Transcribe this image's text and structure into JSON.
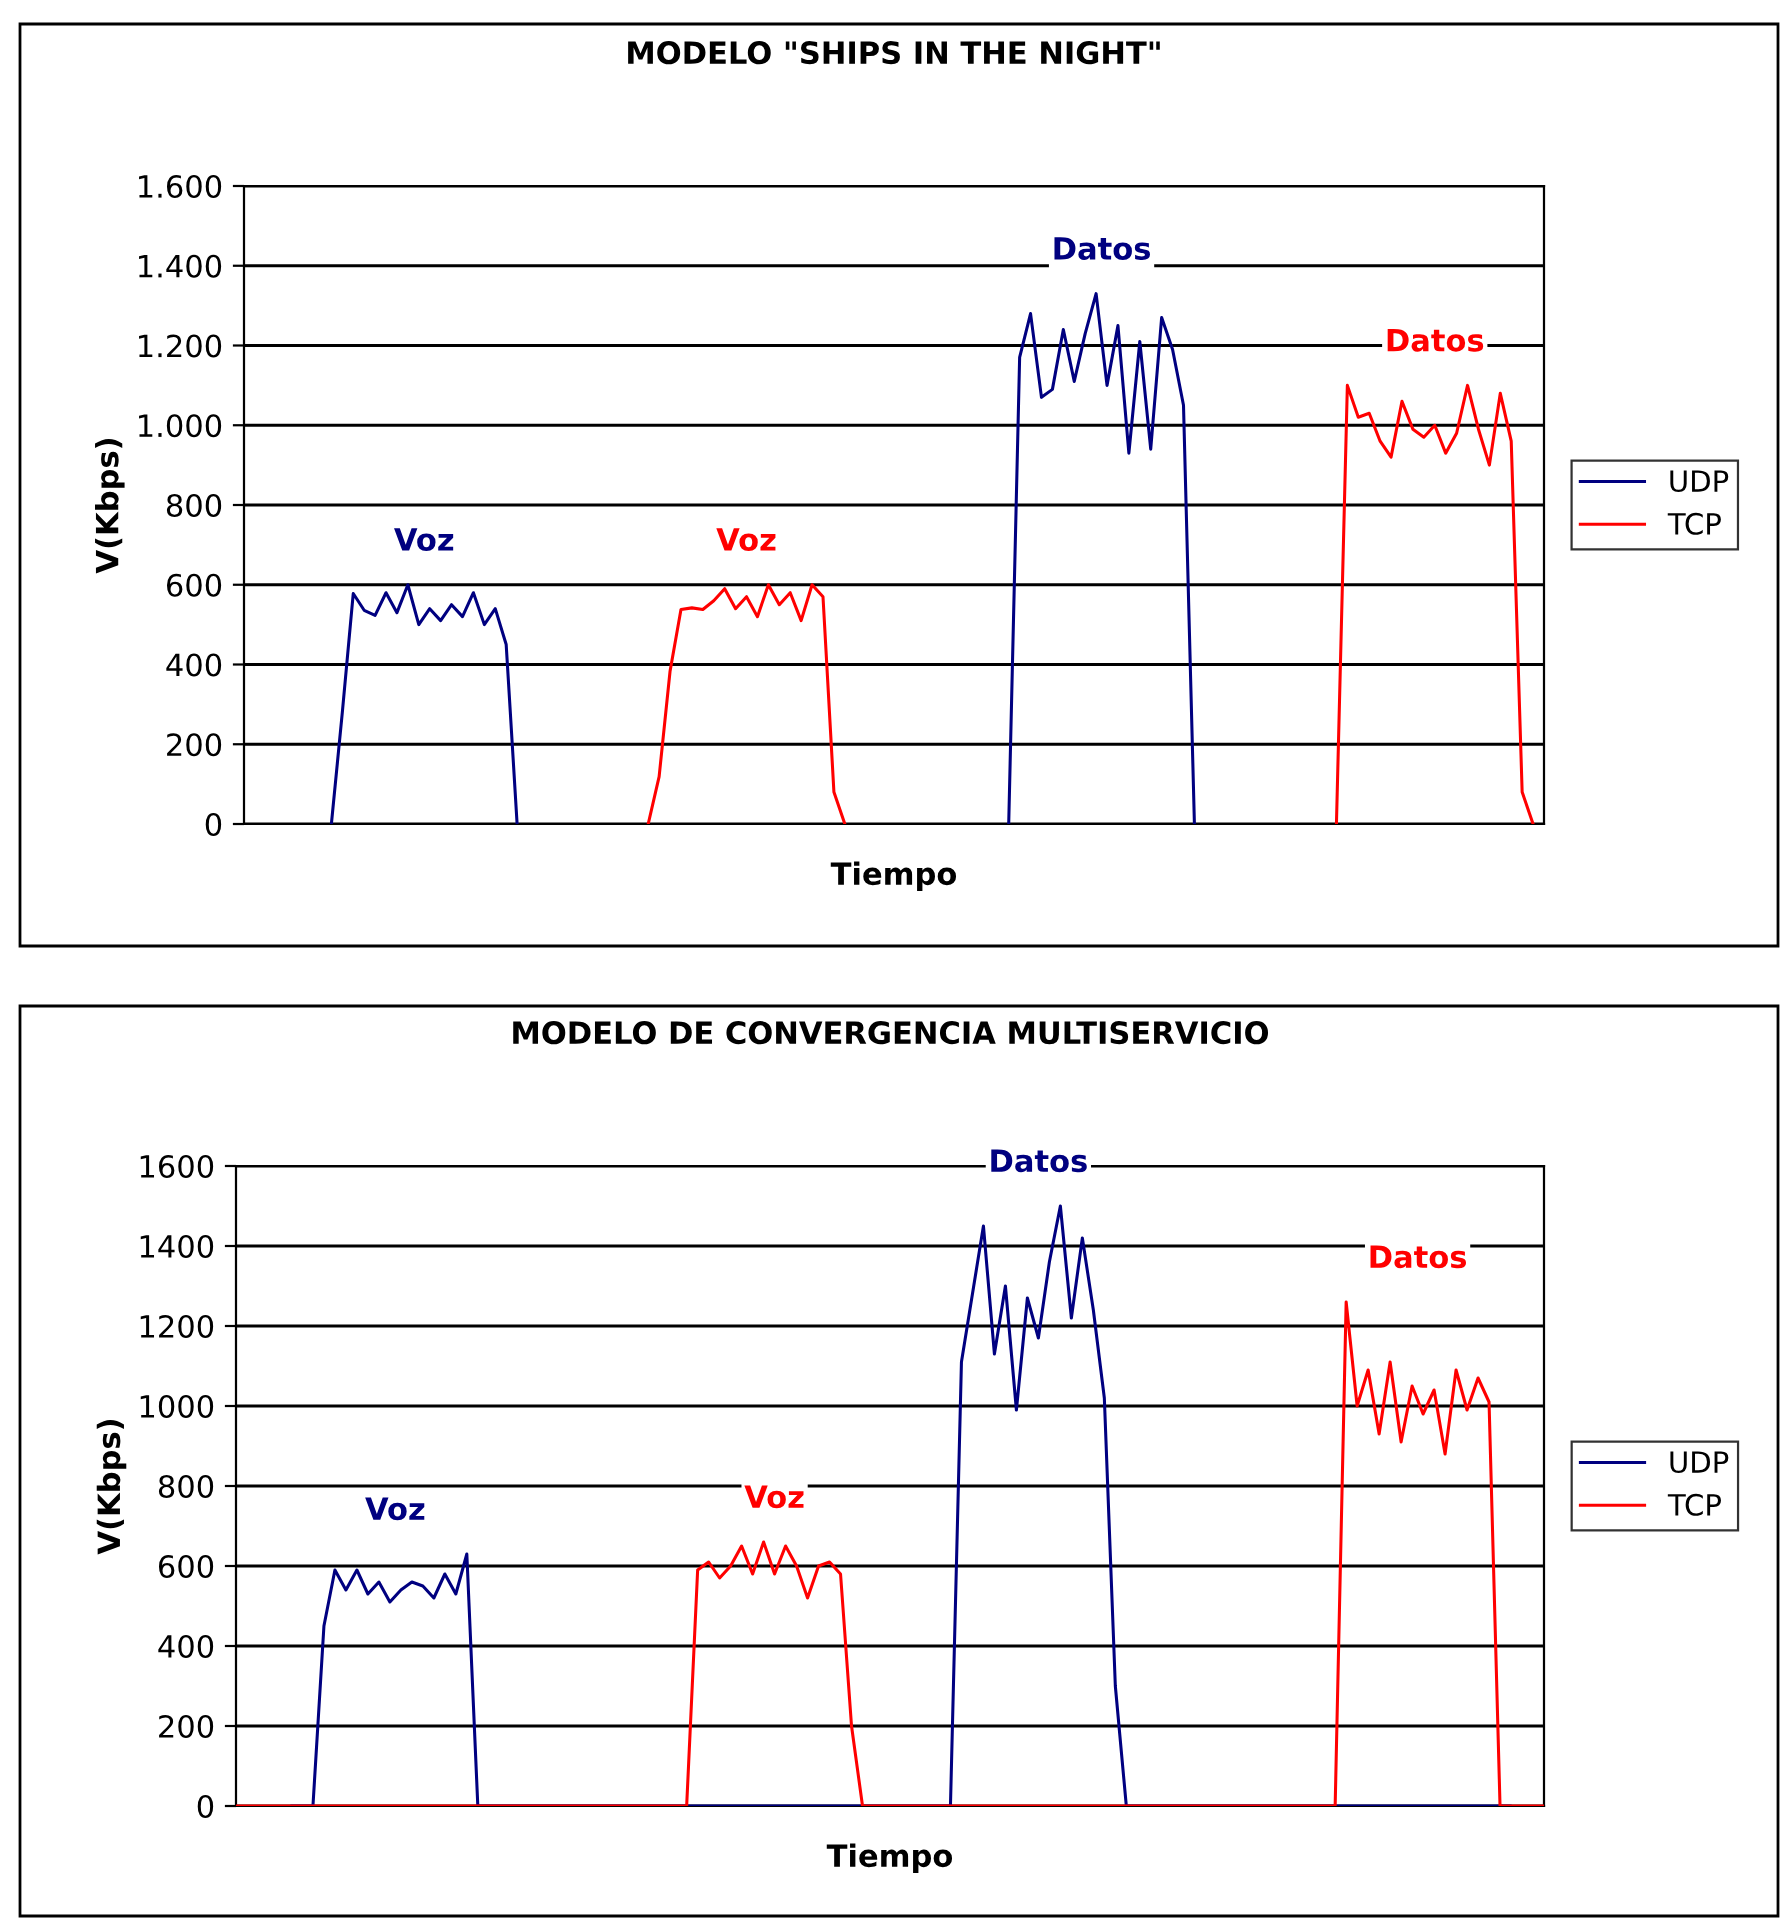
{
  "chart_data": [
    {
      "type": "line",
      "title": "MODELO \"SHIPS IN THE NIGHT\"",
      "xlabel": "Tiempo",
      "ylabel": "V(Kbps)",
      "categories": [
        null,
        null,
        null,
        null,
        null,
        null,
        null,
        null,
        null,
        null,
        null,
        null,
        null,
        null,
        null,
        null,
        null,
        null,
        null,
        null,
        null,
        null,
        null,
        null,
        null,
        null,
        null,
        null,
        null,
        null,
        null,
        null,
        null,
        null,
        null,
        null,
        null,
        null,
        null,
        null,
        null,
        null,
        null,
        null,
        null,
        null,
        null,
        null,
        null,
        null,
        null,
        null,
        null,
        null,
        null,
        null,
        null,
        null,
        null,
        null,
        null,
        null,
        null,
        null,
        null,
        null,
        null,
        null,
        null,
        null,
        null,
        null,
        null,
        null,
        null,
        null,
        null,
        null,
        null,
        null,
        null,
        null,
        null,
        null,
        null,
        null,
        null,
        null,
        null,
        null,
        null,
        null,
        null,
        null,
        null,
        null,
        null,
        null,
        null,
        null,
        null,
        null,
        null,
        null,
        null,
        null,
        null,
        null,
        null,
        null,
        null,
        null,
        null,
        null,
        null,
        null,
        null,
        null,
        null,
        null
      ],
      "series": [
        {
          "name": "UDP",
          "color": "#000080",
          "values": [
            null,
            null,
            null,
            null,
            null,
            null,
            null,
            null,
            0,
            280,
            578,
            536,
            523,
            580,
            530,
            600,
            500,
            540,
            510,
            550,
            520,
            580,
            500,
            540,
            450,
            0,
            null,
            null,
            null,
            null,
            null,
            null,
            null,
            null,
            null,
            null,
            null,
            null,
            null,
            null,
            null,
            null,
            null,
            null,
            null,
            null,
            null,
            null,
            null,
            null,
            null,
            null,
            null,
            null,
            null,
            null,
            null,
            null,
            null,
            null,
            null,
            null,
            null,
            null,
            null,
            null,
            null,
            null,
            null,
            null,
            0,
            1170,
            1280,
            1070,
            1090,
            1240,
            1110,
            1230,
            1330,
            1100,
            1250,
            930,
            1210,
            940,
            1270,
            1190,
            1050,
            0,
            null,
            null,
            null,
            null,
            null,
            null,
            null,
            null,
            null,
            null,
            null,
            null,
            null,
            null,
            null,
            null,
            null,
            null,
            null,
            null,
            null,
            null,
            null,
            null,
            null,
            null,
            null,
            null,
            null,
            null,
            null,
            null
          ]
        },
        {
          "name": "TCP",
          "color": "#ff0000",
          "values": [
            null,
            null,
            null,
            null,
            null,
            null,
            null,
            null,
            null,
            null,
            null,
            null,
            null,
            null,
            null,
            null,
            null,
            null,
            null,
            null,
            null,
            null,
            null,
            null,
            null,
            null,
            null,
            null,
            null,
            null,
            null,
            null,
            null,
            null,
            null,
            null,
            null,
            0,
            119,
            383,
            538,
            542,
            538,
            560,
            590,
            540,
            570,
            520,
            600,
            550,
            580,
            510,
            600,
            570,
            80,
            0,
            null,
            null,
            null,
            null,
            null,
            null,
            null,
            null,
            null,
            null,
            null,
            null,
            null,
            null,
            null,
            null,
            null,
            null,
            null,
            null,
            null,
            null,
            null,
            null,
            null,
            null,
            null,
            null,
            null,
            null,
            null,
            null,
            null,
            null,
            null,
            null,
            null,
            null,
            null,
            null,
            null,
            null,
            null,
            null,
            0,
            1100,
            1020,
            1030,
            960,
            920,
            1060,
            990,
            970,
            1000,
            930,
            980,
            1100,
            990,
            900,
            1080,
            960,
            80,
            0,
            null
          ]
        }
      ],
      "ylim": [
        0,
        1600
      ],
      "yticks": [
        {
          "value": 0,
          "label": "0"
        },
        {
          "value": 200,
          "label": "200"
        },
        {
          "value": 400,
          "label": "400"
        },
        {
          "value": 600,
          "label": "600"
        },
        {
          "value": 800,
          "label": "800"
        },
        {
          "value": 1000,
          "label": "1.000"
        },
        {
          "value": 1200,
          "label": "1.200"
        },
        {
          "value": 1400,
          "label": "1.400"
        },
        {
          "value": 1600,
          "label": "1.600"
        }
      ],
      "grid": "y",
      "legend": "right",
      "marker": "none",
      "line_style": "solid",
      "annotations": [
        "Voz",
        "Voz",
        "Datos",
        "Datos"
      ]
    },
    {
      "type": "line",
      "title": "MODELO DE CONVERGENCIA MULTISERVICIO",
      "xlabel": "Tiempo",
      "ylabel": "V(Kbps)",
      "categories": [
        null,
        null,
        null,
        null,
        null,
        null,
        null,
        null,
        null,
        null,
        null,
        null,
        null,
        null,
        null,
        null,
        null,
        null,
        null,
        null,
        null,
        null,
        null,
        null,
        null,
        null,
        null,
        null,
        null,
        null,
        null,
        null,
        null,
        null,
        null,
        null,
        null,
        null,
        null,
        null,
        null,
        null,
        null,
        null,
        null,
        null,
        null,
        null,
        null,
        null,
        null,
        null,
        null,
        null,
        null,
        null,
        null,
        null,
        null,
        null,
        null,
        null,
        null,
        null,
        null,
        null,
        null,
        null,
        null,
        null,
        null,
        null,
        null,
        null,
        null,
        null,
        null,
        null,
        null,
        null,
        null,
        null,
        null,
        null,
        null,
        null,
        null,
        null,
        null,
        null,
        null,
        null,
        null,
        null,
        null,
        null,
        null,
        null,
        null,
        null,
        null,
        null,
        null,
        null,
        null,
        null,
        null,
        null,
        null,
        null,
        null,
        null,
        null,
        null,
        null,
        null,
        null,
        null,
        null,
        null
      ],
      "series": [
        {
          "name": "UDP",
          "color": "#000080",
          "values": [
            null,
            null,
            null,
            null,
            null,
            0,
            0,
            0,
            450,
            590,
            540,
            590,
            530,
            560,
            510,
            540,
            560,
            550,
            520,
            580,
            530,
            630,
            0,
            0,
            0,
            0,
            0,
            0,
            0,
            0,
            0,
            0,
            0,
            0,
            0,
            0,
            0,
            0,
            0,
            0,
            0,
            0,
            0,
            0,
            0,
            0,
            0,
            0,
            0,
            0,
            0,
            0,
            0,
            0,
            0,
            0,
            0,
            0,
            0,
            0,
            0,
            0,
            0,
            0,
            0,
            0,
            1110,
            1280,
            1450,
            1130,
            1300,
            990,
            1270,
            1170,
            1360,
            1500,
            1220,
            1420,
            1240,
            1020,
            300,
            0,
            0,
            0,
            0,
            0,
            0,
            0,
            0,
            0,
            0,
            0,
            0,
            0,
            0,
            0,
            0,
            0,
            0,
            0,
            0,
            0,
            0,
            0,
            0,
            0,
            0,
            0,
            0,
            0,
            0,
            0,
            0,
            0,
            0,
            0,
            0,
            null,
            null,
            null
          ]
        },
        {
          "name": "TCP",
          "color": "#ff0000",
          "values": [
            0,
            0,
            0,
            0,
            0,
            0,
            0,
            0,
            0,
            0,
            0,
            0,
            0,
            0,
            0,
            0,
            0,
            0,
            0,
            0,
            0,
            0,
            0,
            0,
            0,
            0,
            0,
            0,
            0,
            0,
            0,
            0,
            0,
            0,
            0,
            0,
            0,
            0,
            0,
            0,
            0,
            0,
            590,
            610,
            570,
            600,
            650,
            580,
            660,
            580,
            650,
            600,
            520,
            600,
            610,
            580,
            200,
            0,
            0,
            0,
            0,
            0,
            0,
            0,
            0,
            0,
            0,
            0,
            0,
            0,
            0,
            0,
            0,
            0,
            0,
            0,
            0,
            0,
            0,
            0,
            0,
            0,
            0,
            0,
            0,
            0,
            0,
            0,
            0,
            0,
            0,
            0,
            0,
            0,
            0,
            0,
            0,
            0,
            0,
            0,
            0,
            1260,
            1000,
            1090,
            930,
            1110,
            910,
            1050,
            980,
            1040,
            880,
            1090,
            990,
            1070,
            1010,
            0,
            0,
            0,
            0,
            0
          ]
        }
      ],
      "ylim": [
        0,
        1600
      ],
      "yticks": [
        0,
        200,
        400,
        600,
        800,
        1000,
        1200,
        1400,
        1600
      ],
      "grid": "y",
      "legend": "right",
      "marker": "none",
      "line_style": "solid",
      "annotations": [
        "Voz",
        "Voz",
        "Datos",
        "Datos"
      ]
    }
  ]
}
